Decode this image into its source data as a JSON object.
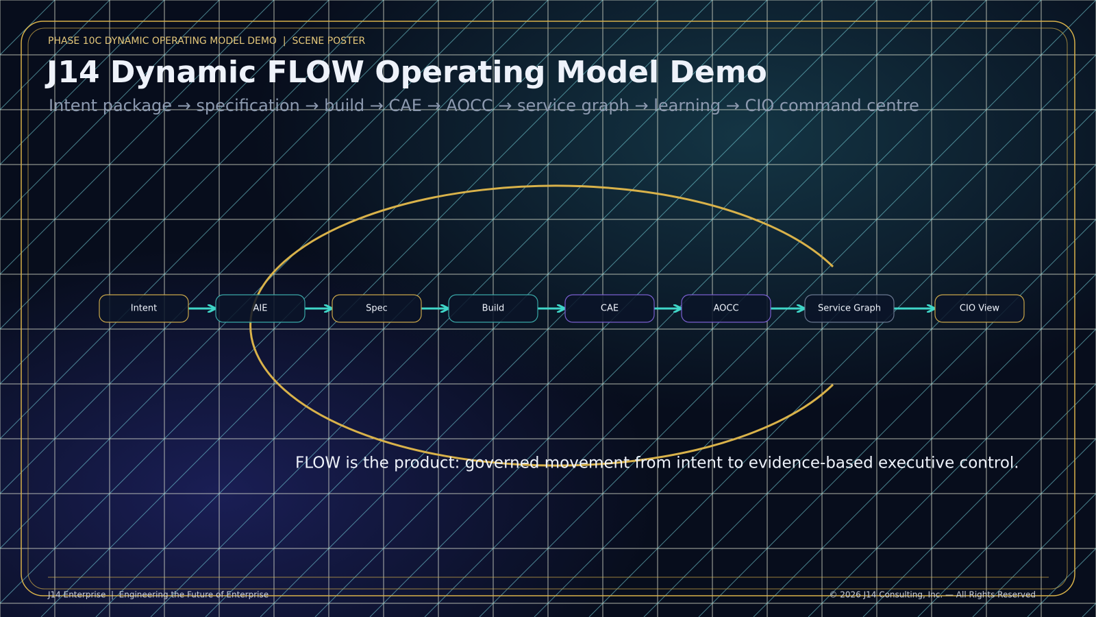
{
  "header": {
    "kicker": "PHASE 10C DYNAMIC OPERATING MODEL DEMO  |  SCENE POSTER",
    "title": "J14 Dynamic FLOW Operating Model Demo",
    "subtitle": "Intent package → specification → build → CAE → AOCC → service graph → learning → CIO command centre"
  },
  "nodes": [
    {
      "label": "Intent"
    },
    {
      "label": "AIE"
    },
    {
      "label": "Spec"
    },
    {
      "label": "Build"
    },
    {
      "label": "CAE"
    },
    {
      "label": "AOCC"
    },
    {
      "label": "Service Graph"
    },
    {
      "label": "CIO View"
    }
  ],
  "tagline": "FLOW is the product: governed movement from intent to evidence-based executive control.",
  "footer": {
    "left": "J14 Enterprise  |  Engineering the Future of Enterprise",
    "right": "© 2026 J14 Consulting, Inc. — All Rights Reserved"
  }
}
